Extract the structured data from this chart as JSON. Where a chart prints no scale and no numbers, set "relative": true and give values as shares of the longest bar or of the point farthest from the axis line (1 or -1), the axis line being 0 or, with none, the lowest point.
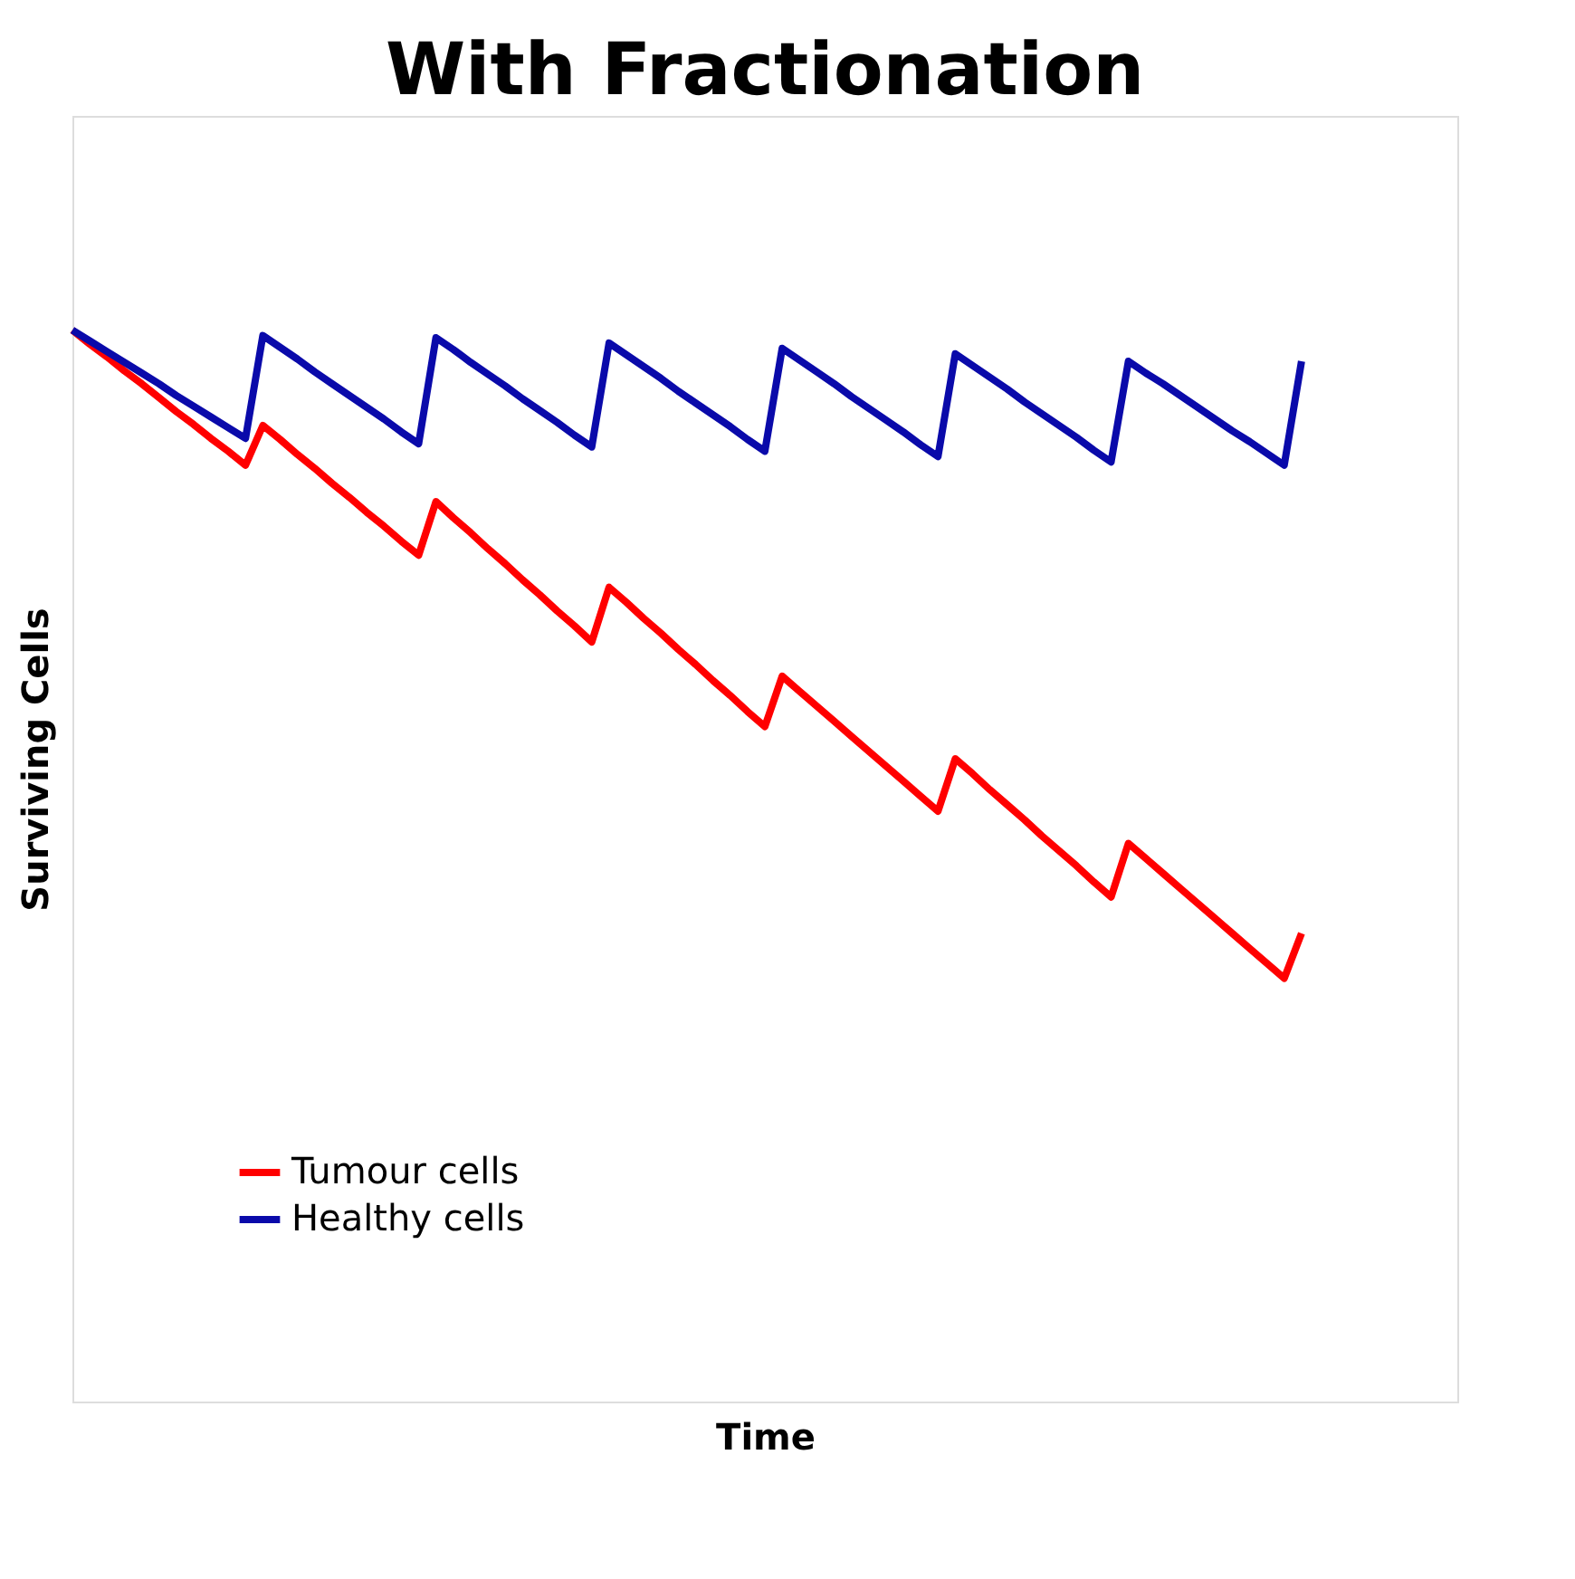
{
  "chart_data": {
    "type": "line",
    "title": "With Fractionation",
    "xlabel": "Time",
    "ylabel": "Surviving  Cells",
    "relative": true,
    "tick_labels": false,
    "grid": false,
    "legend": "bottom left",
    "marker": "none",
    "line_style": "solid",
    "categories": [
      null,
      null,
      null,
      null,
      null,
      null,
      null,
      null,
      null,
      null,
      null,
      null,
      null,
      null,
      null,
      null,
      null,
      null,
      null,
      null,
      null,
      null,
      null,
      null,
      null,
      null,
      null,
      null,
      null,
      null,
      null,
      null,
      null,
      null,
      null,
      null,
      null,
      null,
      null,
      null,
      null,
      null,
      null,
      null,
      null,
      null,
      null,
      null,
      null,
      null,
      null,
      null,
      null,
      null,
      null,
      null,
      null,
      null,
      null,
      null,
      null,
      null,
      null,
      null,
      null,
      null,
      null,
      null,
      null,
      null,
      null,
      null,
      null,
      null,
      null,
      null,
      null,
      null,
      null,
      null,
      null
    ],
    "series": [
      {
        "name": "Tumour cells",
        "color": "#ff0000",
        "values": [
          1.0,
          0.987,
          0.975,
          0.962,
          0.95,
          0.937,
          0.924,
          0.912,
          0.899,
          0.887,
          0.874,
          0.911,
          0.898,
          0.884,
          0.871,
          0.857,
          0.844,
          0.83,
          0.817,
          0.803,
          0.79,
          0.84,
          0.825,
          0.811,
          0.796,
          0.782,
          0.767,
          0.753,
          0.738,
          0.724,
          0.709,
          0.76,
          0.746,
          0.731,
          0.717,
          0.702,
          0.688,
          0.673,
          0.659,
          0.644,
          0.63,
          0.677,
          0.663,
          0.649,
          0.635,
          0.621,
          0.607,
          0.593,
          0.579,
          0.565,
          0.551,
          0.6,
          0.586,
          0.571,
          0.557,
          0.543,
          0.528,
          0.514,
          0.5,
          0.485,
          0.471,
          0.521,
          0.507,
          0.493,
          0.479,
          0.465,
          0.451,
          0.437,
          0.423,
          0.409,
          0.395,
          0.437,
          null,
          null,
          null,
          null,
          null,
          null,
          null,
          null,
          null
        ]
      },
      {
        "name": "Healthy cells",
        "color": "#0a0aaa",
        "values": [
          1.0,
          0.99,
          0.98,
          0.97,
          0.96,
          0.95,
          0.939,
          0.929,
          0.919,
          0.909,
          0.899,
          0.995,
          0.984,
          0.973,
          0.961,
          0.95,
          0.939,
          0.928,
          0.917,
          0.905,
          0.894,
          0.993,
          0.982,
          0.97,
          0.959,
          0.948,
          0.936,
          0.925,
          0.914,
          0.902,
          0.891,
          0.988,
          0.977,
          0.966,
          0.955,
          0.943,
          0.932,
          0.921,
          0.91,
          0.898,
          0.887,
          0.983,
          0.972,
          0.961,
          0.95,
          0.938,
          0.927,
          0.916,
          0.905,
          0.893,
          0.882,
          0.978,
          0.967,
          0.956,
          0.945,
          0.933,
          0.922,
          0.911,
          0.9,
          0.888,
          0.877,
          0.971,
          0.96,
          0.95,
          0.939,
          0.928,
          0.917,
          0.906,
          0.896,
          0.885,
          0.874,
          0.971,
          null,
          null,
          null,
          null,
          null,
          null,
          null,
          null,
          null
        ]
      }
    ]
  }
}
